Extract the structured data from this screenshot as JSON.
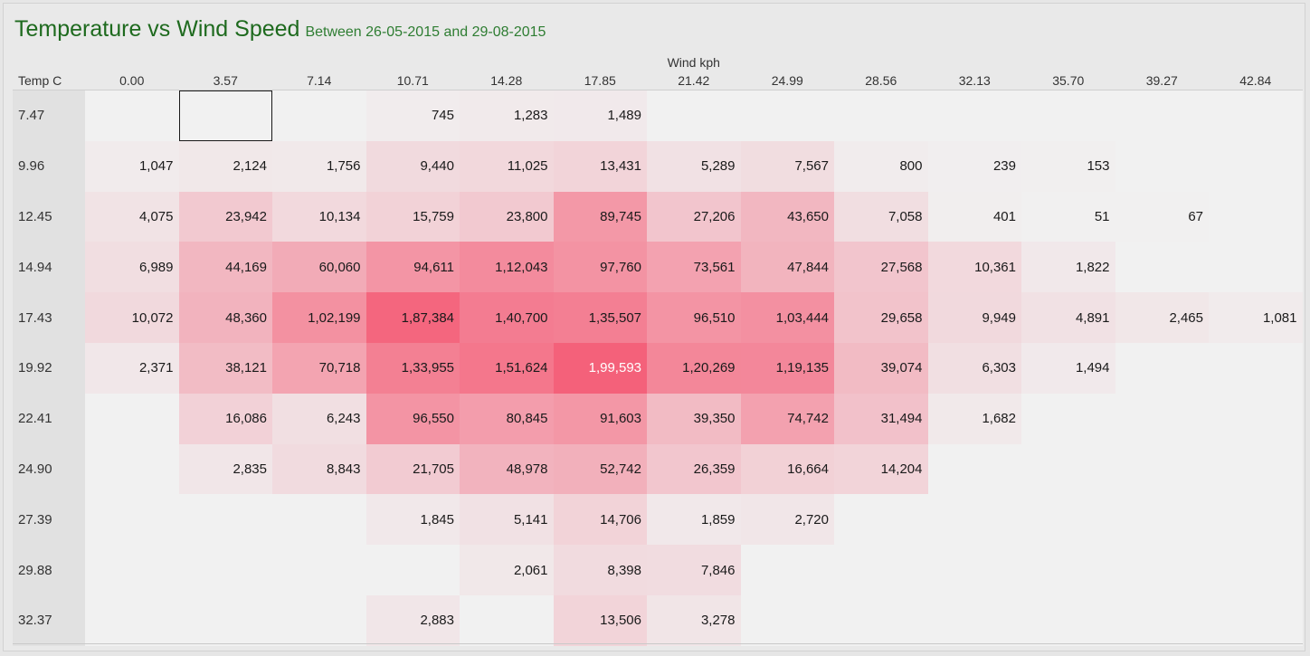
{
  "title": "Temperature vs Wind Speed",
  "subtitle": "Between 26-05-2015 and 29-08-2015",
  "chart_data": {
    "type": "heatmap",
    "title": "Temperature vs Wind Speed",
    "subtitle": "Between 26-05-2015 and 29-08-2015",
    "xlabel": "Wind kph",
    "ylabel": "Temp C",
    "x": [
      "0.00",
      "3.57",
      "7.14",
      "10.71",
      "14.28",
      "17.85",
      "21.42",
      "24.99",
      "28.56",
      "32.13",
      "35.70",
      "39.27",
      "42.84"
    ],
    "y": [
      "7.47",
      "9.96",
      "12.45",
      "14.94",
      "17.43",
      "19.92",
      "22.41",
      "24.90",
      "27.39",
      "29.88",
      "32.37"
    ],
    "values": [
      [
        null,
        null,
        null,
        745,
        1283,
        1489,
        null,
        null,
        null,
        null,
        null,
        null,
        null
      ],
      [
        1047,
        2124,
        1756,
        9440,
        11025,
        13431,
        5289,
        7567,
        800,
        239,
        153,
        null,
        null
      ],
      [
        4075,
        23942,
        10134,
        15759,
        23800,
        89745,
        27206,
        43650,
        7058,
        401,
        51,
        67,
        null
      ],
      [
        6989,
        44169,
        60060,
        94611,
        112043,
        97760,
        73561,
        47844,
        27568,
        10361,
        1822,
        null,
        null
      ],
      [
        10072,
        48360,
        102199,
        187384,
        140700,
        135507,
        96510,
        103444,
        29658,
        9949,
        4891,
        2465,
        1081
      ],
      [
        2371,
        38121,
        70718,
        133955,
        151624,
        199593,
        120269,
        119135,
        39074,
        6303,
        1494,
        null,
        null
      ],
      [
        null,
        16086,
        6243,
        96550,
        80845,
        91603,
        39350,
        74742,
        31494,
        1682,
        null,
        null,
        null
      ],
      [
        null,
        2835,
        8843,
        21705,
        48978,
        52742,
        26359,
        16664,
        14204,
        null,
        null,
        null,
        null
      ],
      [
        null,
        null,
        null,
        1845,
        5141,
        14706,
        1859,
        2720,
        null,
        null,
        null,
        null,
        null
      ],
      [
        null,
        null,
        null,
        null,
        2061,
        8398,
        7846,
        null,
        null,
        null,
        null,
        null,
        null
      ],
      [
        null,
        null,
        null,
        2883,
        null,
        13506,
        3278,
        null,
        null,
        null,
        null,
        null,
        null
      ]
    ],
    "labels": [
      [
        "",
        "",
        "",
        "745",
        "1,283",
        "1,489",
        "",
        "",
        "",
        "",
        "",
        "",
        ""
      ],
      [
        "1,047",
        "2,124",
        "1,756",
        "9,440",
        "11,025",
        "13,431",
        "5,289",
        "7,567",
        "800",
        "239",
        "153",
        "",
        ""
      ],
      [
        "4,075",
        "23,942",
        "10,134",
        "15,759",
        "23,800",
        "89,745",
        "27,206",
        "43,650",
        "7,058",
        "401",
        "51",
        "67",
        ""
      ],
      [
        "6,989",
        "44,169",
        "60,060",
        "94,611",
        "1,12,043",
        "97,760",
        "73,561",
        "47,844",
        "27,568",
        "10,361",
        "1,822",
        "",
        ""
      ],
      [
        "10,072",
        "48,360",
        "1,02,199",
        "1,87,384",
        "1,40,700",
        "1,35,507",
        "96,510",
        "1,03,444",
        "29,658",
        "9,949",
        "4,891",
        "2,465",
        "1,081"
      ],
      [
        "2,371",
        "38,121",
        "70,718",
        "1,33,955",
        "1,51,624",
        "1,99,593",
        "1,20,269",
        "1,19,135",
        "39,074",
        "6,303",
        "1,494",
        "",
        ""
      ],
      [
        "",
        "16,086",
        "6,243",
        "96,550",
        "80,845",
        "91,603",
        "39,350",
        "74,742",
        "31,494",
        "1,682",
        "",
        "",
        ""
      ],
      [
        "",
        "2,835",
        "8,843",
        "21,705",
        "48,978",
        "52,742",
        "26,359",
        "16,664",
        "14,204",
        "",
        "",
        "",
        ""
      ],
      [
        "",
        "",
        "",
        "1,845",
        "5,141",
        "14,706",
        "1,859",
        "2,720",
        "",
        "",
        "",
        "",
        ""
      ],
      [
        "",
        "",
        "",
        "",
        "2,061",
        "8,398",
        "7,846",
        "",
        "",
        "",
        "",
        "",
        ""
      ],
      [
        "",
        "",
        "",
        "2,883",
        "",
        "13,506",
        "3,278",
        "",
        "",
        "",
        "",
        "",
        ""
      ]
    ],
    "color_low": "#f1f1f1",
    "color_high": "#f4617a",
    "text_color": "#1a1a1a",
    "text_color_on_max": "#ffffff",
    "grid": false
  }
}
